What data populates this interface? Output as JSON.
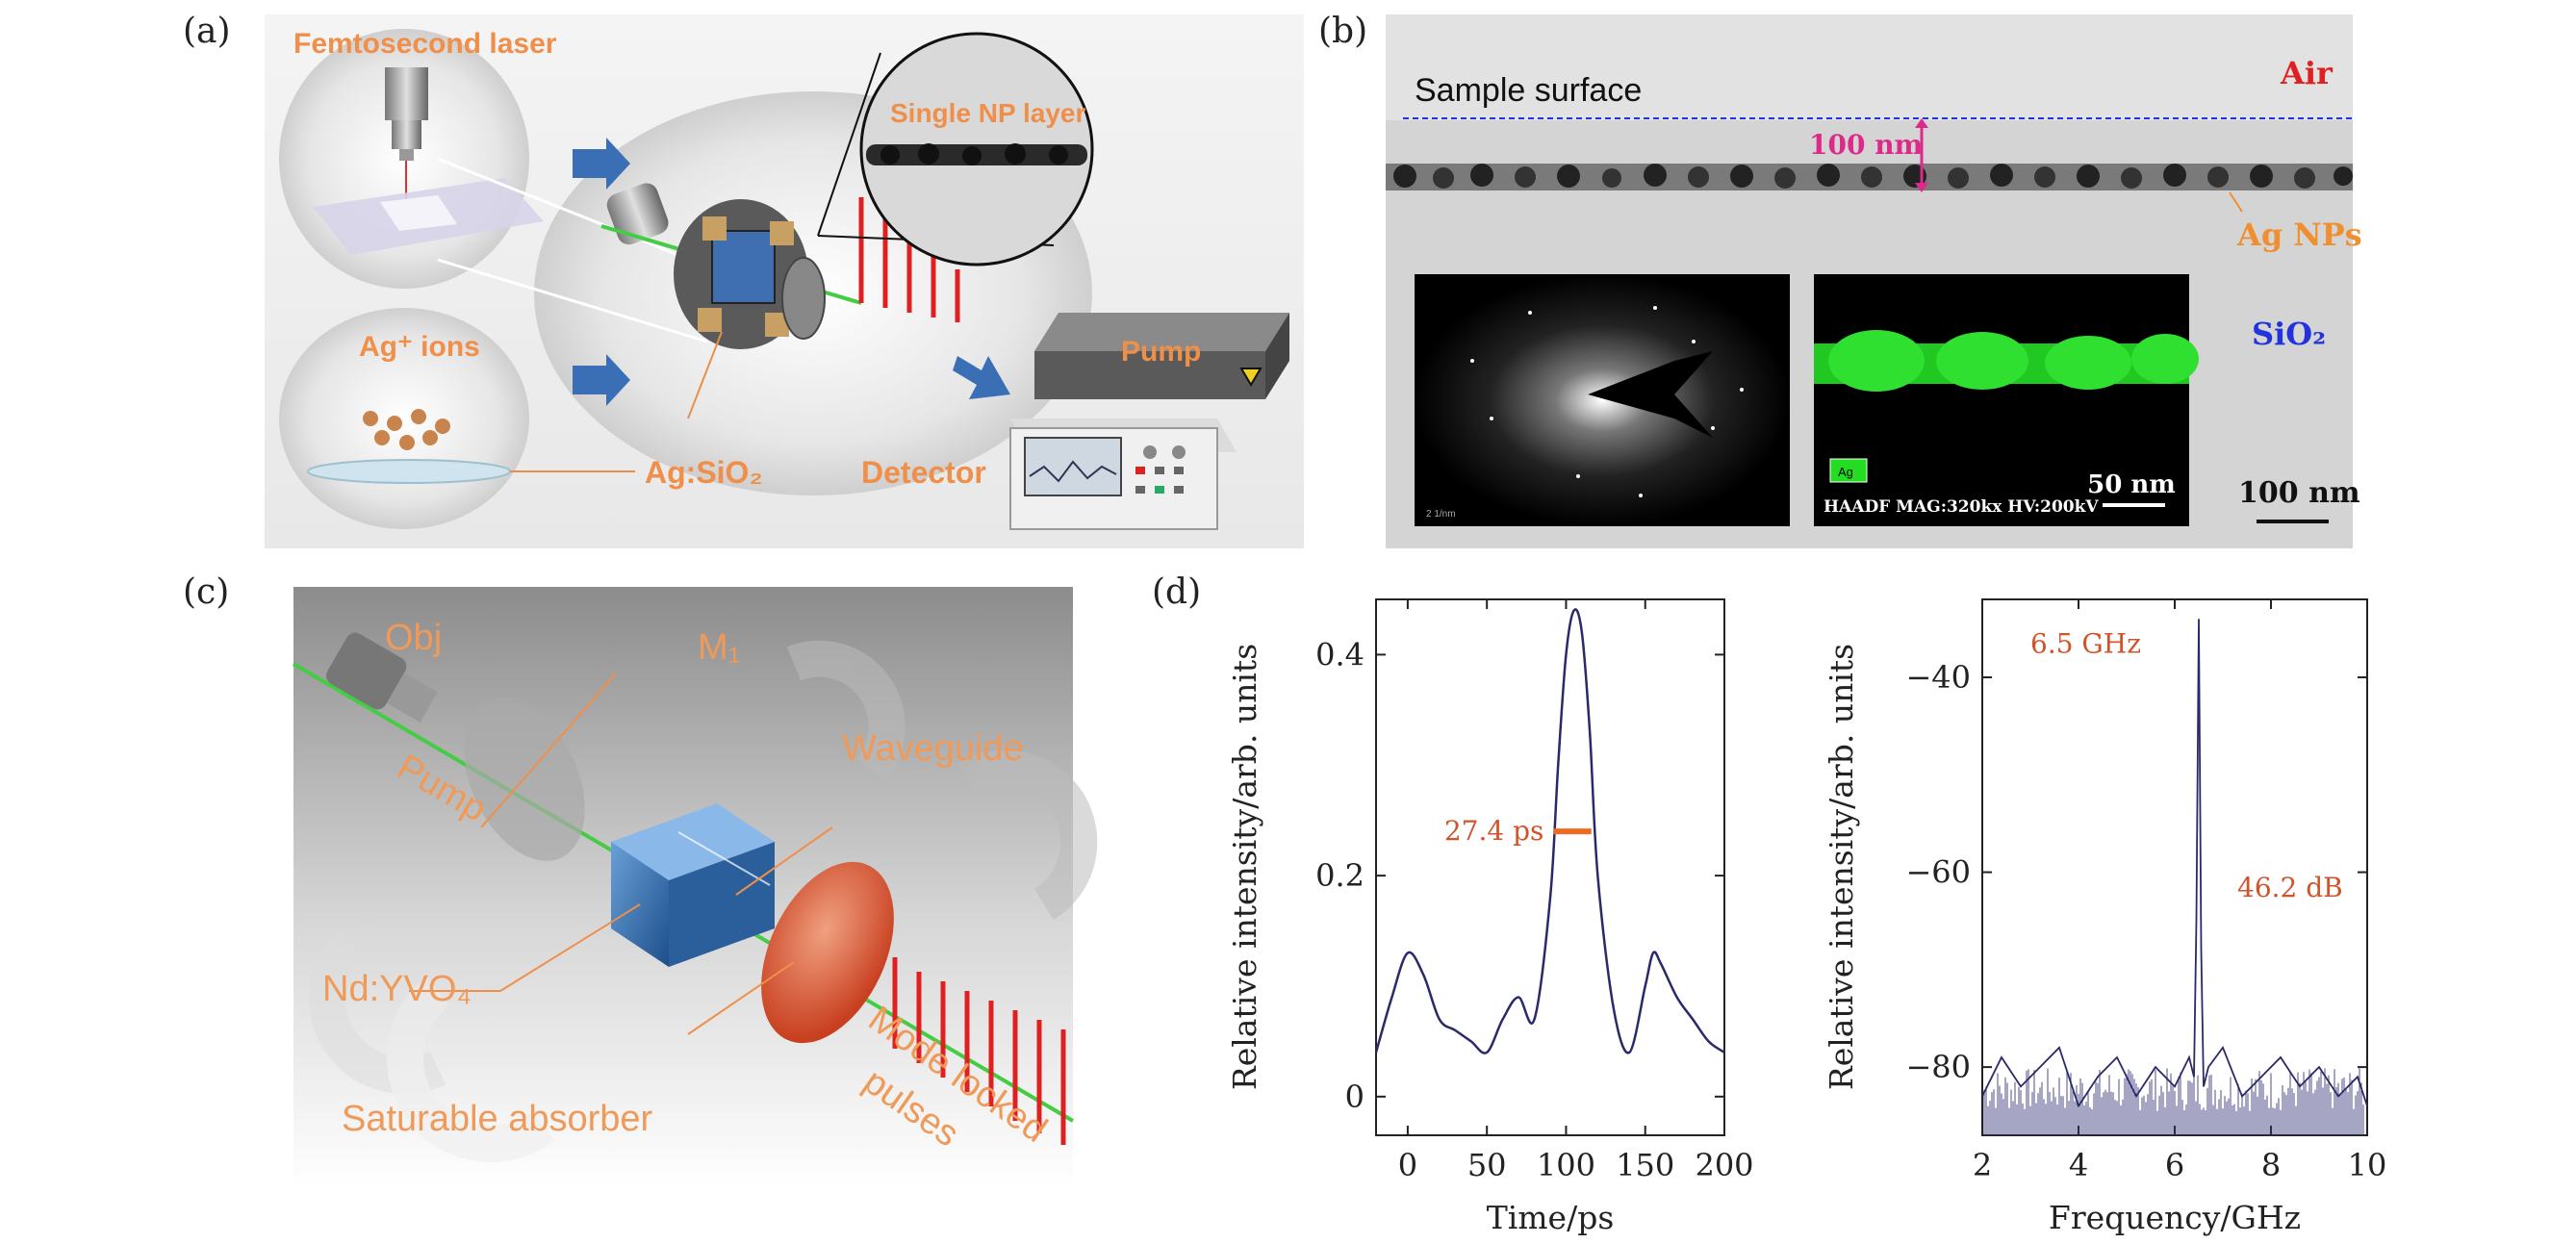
{
  "panel_labels": {
    "a": "(a)",
    "b": "(b)",
    "c": "(c)",
    "d": "(d)"
  },
  "panel_a": {
    "femtosecond_laser": "Femtosecond laser",
    "ag_ions": "Ag⁺ ions",
    "single_np_layer": "Single NP layer",
    "pump": "Pump",
    "ag_sio2": "Ag:SiO₂",
    "detector": "Detector"
  },
  "panel_b": {
    "sample_surface": "Sample surface",
    "air": "Air",
    "depth": "100 nm",
    "ag_nps": "Ag NPs",
    "sio2": "SiO₂",
    "map_label": "Ag",
    "haadf_caption": "HAADF MAG:320kx HV:200kV",
    "inset_scale": "50 nm",
    "scale": "100 nm",
    "saed_scale": "2 1/nm"
  },
  "panel_c": {
    "obj": "Obj",
    "m1": "M₁",
    "pump": "Pump",
    "waveguide": "Waveguide",
    "crystal": "Nd:YVO₄",
    "saturable_absorber": "Saturable absorber",
    "mode_locked_1": "Mode locked",
    "mode_locked_2": "pulses"
  },
  "panel_d": {
    "ylabel": "Relative intensity/arb. units",
    "left_xlabel": "Time/ps",
    "right_xlabel": "Frequency/GHz",
    "pulse_width": "27.4 ps",
    "peak_freq": "6.5 GHz",
    "snr": "46.2 dB"
  },
  "chart_data": [
    {
      "type": "line",
      "xlabel": "Time/ps",
      "ylabel": "Relative intensity/arb. units",
      "xlim": [
        -20,
        200
      ],
      "ylim": [
        -0.035,
        0.45
      ],
      "xticks": [
        0,
        50,
        100,
        150,
        200
      ],
      "yticks": [
        0,
        0.2,
        0.4
      ],
      "ytick_labels": [
        "0",
        "0.2",
        "0.4"
      ],
      "x": [
        -20,
        -10,
        0,
        10,
        20,
        30,
        40,
        50,
        60,
        70,
        80,
        90,
        95,
        100,
        105,
        110,
        115,
        120,
        130,
        140,
        150,
        155,
        160,
        170,
        180,
        190,
        200
      ],
      "y": [
        0.04,
        0.09,
        0.13,
        0.11,
        0.07,
        0.06,
        0.05,
        0.04,
        0.07,
        0.09,
        0.07,
        0.18,
        0.3,
        0.4,
        0.44,
        0.42,
        0.33,
        0.2,
        0.08,
        0.04,
        0.1,
        0.13,
        0.12,
        0.09,
        0.07,
        0.05,
        0.04
      ],
      "annotations": [
        {
          "text": "27.4 ps",
          "x": 97,
          "y": 0.24
        }
      ],
      "grid": false
    },
    {
      "type": "line",
      "xlabel": "Frequency/GHz",
      "ylabel": "Relative intensity/arb. units",
      "xlim": [
        2,
        10
      ],
      "ylim": [
        -87,
        -32
      ],
      "xticks": [
        2,
        4,
        6,
        8,
        10
      ],
      "yticks": [
        -80,
        -60,
        -40
      ],
      "ytick_labels": [
        "−80",
        "−60",
        "−40"
      ],
      "x": [
        2.0,
        2.4,
        2.8,
        3.2,
        3.6,
        4.0,
        4.4,
        4.8,
        5.2,
        5.6,
        6.0,
        6.3,
        6.4,
        6.45,
        6.5,
        6.55,
        6.6,
        6.7,
        7.0,
        7.4,
        7.8,
        8.2,
        8.6,
        9.0,
        9.4,
        9.8,
        10.0
      ],
      "y": [
        -83,
        -79,
        -82,
        -80,
        -78,
        -84,
        -81,
        -79,
        -83,
        -80,
        -82,
        -79,
        -81,
        -65,
        -34,
        -68,
        -82,
        -80,
        -78,
        -83,
        -81,
        -79,
        -82,
        -80,
        -83,
        -81,
        -84
      ],
      "annotations": [
        {
          "text": "6.5 GHz",
          "x": 5.0,
          "y": -38
        },
        {
          "text": "46.2 dB",
          "x": 8.0,
          "y": -62
        }
      ],
      "grid": false
    }
  ]
}
